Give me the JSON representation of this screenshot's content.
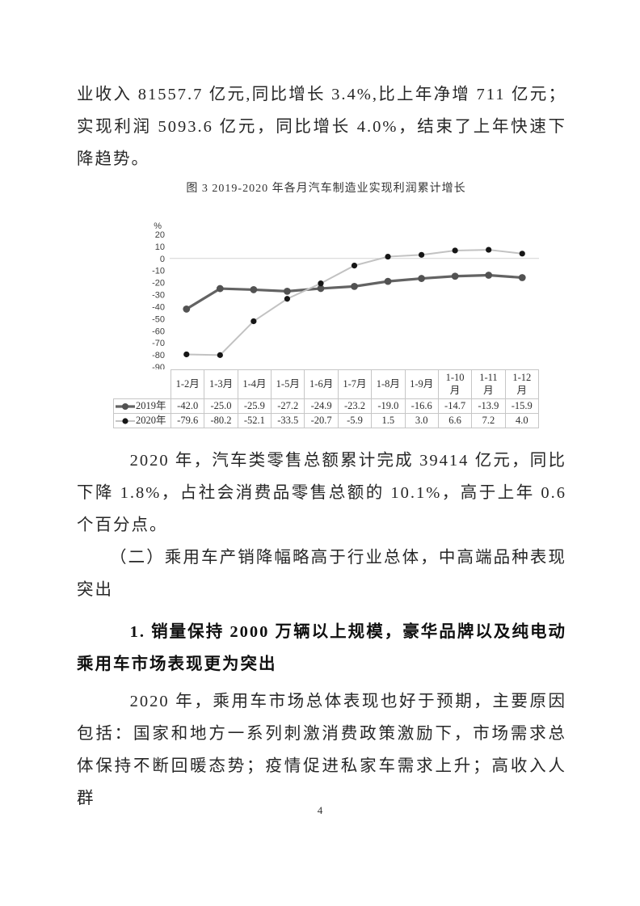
{
  "document": {
    "p1": "业收入 81557.7 亿元,同比增长 3.4%,比上年净增 711 亿元；实现利润 5093.6 亿元，同比增长 4.0%，结束了上年快速下降趋势。",
    "p2": "2020 年，汽车类零售总额累计完成 39414 亿元，同比下降 1.8%，占社会消费品零售总额的 10.1%，高于上年 0.6 个百分点。",
    "h_section": "（二）乘用车产销降幅略高于行业总体，中高端品种表现突出",
    "h_sub": "1. 销量保持 2000 万辆以上规模，豪华品牌以及纯电动乘用车市场表现更为突出",
    "p3": "2020 年，乘用车市场总体表现也好于预期，主要原因包括：国家和地方一系列刺激消费政策激励下，市场需求总体保持不断回暖态势；疫情促进私家车需求上升；高收入人群",
    "page_number": "4"
  },
  "chart_data": {
    "type": "line",
    "title": "图 3  2019-2020 年各月汽车制造业实现利润累计增长",
    "ylabel": "%",
    "categories": [
      "1-2月",
      "1-3月",
      "1-4月",
      "1-5月",
      "1-6月",
      "1-7月",
      "1-8月",
      "1-9月",
      "1-10月",
      "1-11月",
      "1-12月"
    ],
    "series": [
      {
        "name": "2019年",
        "values": [
          -42.0,
          -25.0,
          -25.9,
          -27.2,
          -24.9,
          -23.2,
          -19.0,
          -16.6,
          -14.7,
          -13.9,
          -15.9
        ],
        "line_color": "#636363",
        "marker_color": "#525252",
        "line_width": 3.2,
        "marker_r": 4.4
      },
      {
        "name": "2020年",
        "values": [
          -79.6,
          -80.2,
          -52.1,
          -33.5,
          -20.7,
          -5.9,
          1.5,
          3.0,
          6.6,
          7.2,
          4.0
        ],
        "line_color": "#c2c2c2",
        "marker_color": "#161616",
        "line_width": 2,
        "marker_r": 3.6
      }
    ],
    "ylim": [
      -90,
      20
    ],
    "yticks": [
      20,
      10,
      0,
      -10,
      -20,
      -30,
      -40,
      -50,
      -60,
      -70,
      -80,
      -90
    ],
    "grid": "zero-line-only",
    "gridline_color": "#d4d4d4",
    "legend_position": "table-left",
    "value_format": "0.0"
  }
}
